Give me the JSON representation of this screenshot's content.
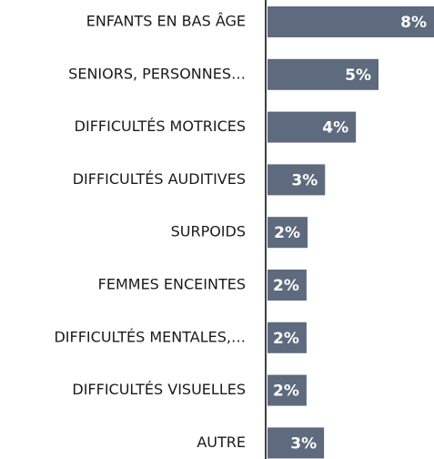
{
  "chart_data": {
    "type": "hbar",
    "categories": [
      "ENFANTS EN BAS ÂGE",
      "SENIORS, PERSONNES…",
      "DIFFICULTÉS MOTRICES",
      "DIFFICULTÉS AUDITIVES",
      "SURPOIDS",
      "FEMMES ENCEINTES",
      "DIFFICULTÉS MENTALES,…",
      "DIFFICULTÉS VISUELLES",
      "AUTRE"
    ],
    "values": [
      8.1,
      5.4,
      4.3,
      2.8,
      1.95,
      1.9,
      1.9,
      1.9,
      2.75
    ],
    "value_labels": [
      "8%",
      "5%",
      "4%",
      "3%",
      "2%",
      "2%",
      "2%",
      "2%",
      "3%"
    ],
    "color": "#5e6a7d"
  }
}
